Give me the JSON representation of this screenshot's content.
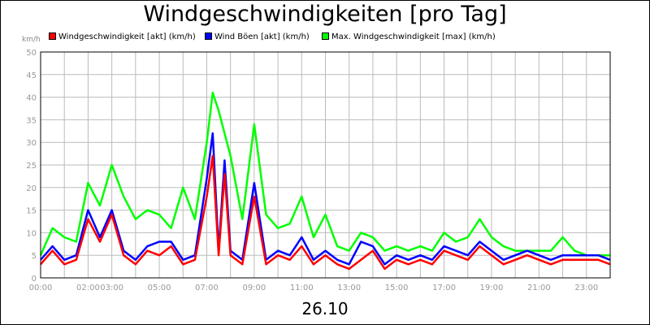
{
  "title": "Windgeschwindigkeiten [pro Tag]",
  "date_label": "26.10",
  "unit_label": "km/h",
  "colors": {
    "background": "#ffffff",
    "grid": "#bbbbbb",
    "axis": "#000000",
    "tick_text": "#999999"
  },
  "chart_data": {
    "type": "line",
    "title": "Windgeschwindigkeiten [pro Tag]",
    "xlabel": "26.10",
    "ylabel": "km/h",
    "ylim": [
      0,
      50
    ],
    "yticks": [
      0,
      5,
      10,
      15,
      20,
      25,
      30,
      35,
      40,
      45,
      50
    ],
    "xlim": [
      "00:00",
      "24:00"
    ],
    "xticks": [
      "00:00",
      "02:00",
      "03:00",
      "05:00",
      "07:00",
      "09:00",
      "11:00",
      "13:00",
      "15:00",
      "17:00",
      "19:00",
      "21:00",
      "23:00"
    ],
    "grid": true,
    "legend_position": "top",
    "x_hours": [
      0,
      0.5,
      1,
      1.5,
      2,
      2.5,
      3,
      3.5,
      4,
      4.5,
      5,
      5.5,
      6,
      6.5,
      7,
      7.25,
      7.5,
      7.75,
      8,
      8.5,
      9,
      9.5,
      10,
      10.5,
      11,
      11.5,
      12,
      12.5,
      13,
      13.5,
      14,
      14.5,
      15,
      15.5,
      16,
      16.5,
      17,
      17.5,
      18,
      18.5,
      19,
      19.5,
      20,
      20.5,
      21,
      21.5,
      22,
      22.5,
      23,
      23.5,
      24
    ],
    "series": [
      {
        "name": "Windgeschwindigkeit [akt] (km/h)",
        "color": "#ff0000",
        "values": [
          3,
          6,
          3,
          4,
          13,
          8,
          14,
          5,
          3,
          6,
          5,
          7,
          3,
          4,
          18,
          27,
          5,
          23,
          5,
          3,
          18,
          3,
          5,
          4,
          7,
          3,
          5,
          3,
          2,
          4,
          6,
          2,
          4,
          3,
          4,
          3,
          6,
          5,
          4,
          7,
          5,
          3,
          4,
          5,
          4,
          3,
          4,
          4,
          4,
          4,
          3
        ]
      },
      {
        "name": "Wind Böen [akt] (km/h)",
        "color": "#0000ff",
        "values": [
          4,
          7,
          4,
          5,
          15,
          9,
          15,
          6,
          4,
          7,
          8,
          8,
          4,
          5,
          22,
          32,
          6,
          26,
          6,
          4,
          21,
          4,
          6,
          5,
          9,
          4,
          6,
          4,
          3,
          8,
          7,
          3,
          5,
          4,
          5,
          4,
          7,
          6,
          5,
          8,
          6,
          4,
          5,
          6,
          5,
          4,
          5,
          5,
          5,
          5,
          4
        ]
      },
      {
        "name": "Max. Windgeschwindigkeit [max] (km/h)",
        "color": "#00ff00",
        "values": [
          5,
          11,
          9,
          8,
          21,
          16,
          25,
          18,
          13,
          15,
          14,
          11,
          20,
          13,
          30,
          41,
          37,
          32,
          27,
          13,
          34,
          14,
          11,
          12,
          18,
          9,
          14,
          7,
          6,
          10,
          9,
          6,
          7,
          6,
          7,
          6,
          10,
          8,
          9,
          13,
          9,
          7,
          6,
          6,
          6,
          6,
          9,
          6,
          5,
          5,
          5
        ]
      }
    ]
  }
}
